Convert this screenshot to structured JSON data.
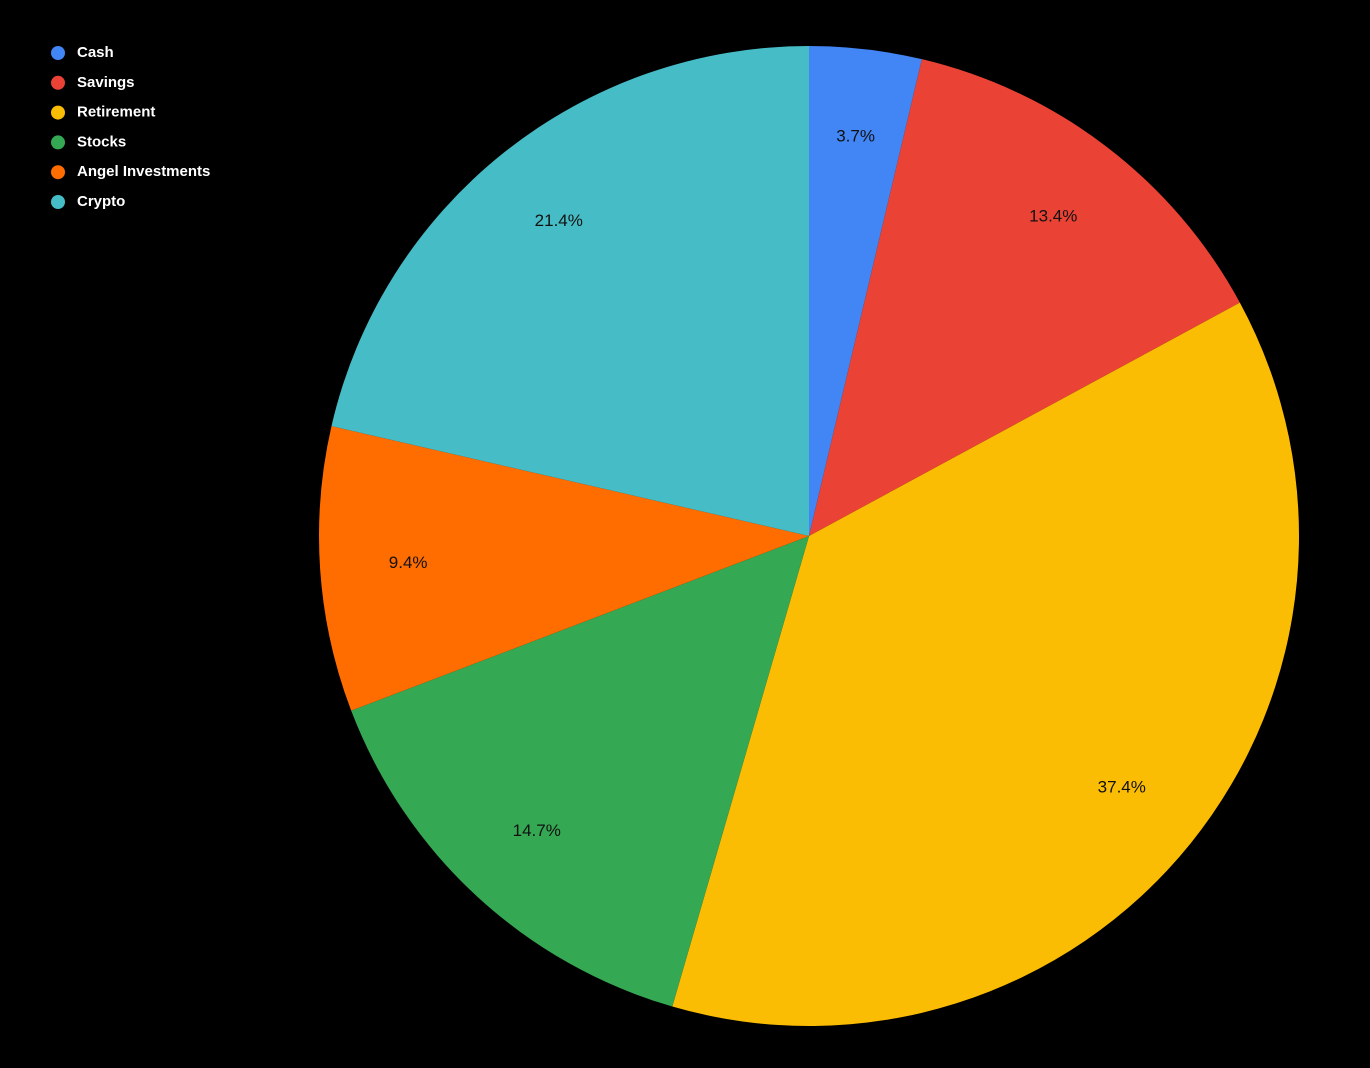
{
  "chart_data": {
    "type": "pie",
    "categories": [
      "Cash",
      "Savings",
      "Retirement",
      "Stocks",
      "Angel Investments",
      "Crypto"
    ],
    "values": [
      3.7,
      13.4,
      37.4,
      14.7,
      9.4,
      21.4
    ],
    "value_labels": [
      "3.7%",
      "13.4%",
      "37.4%",
      "14.7%",
      "9.4%",
      "21.4%"
    ],
    "colors": [
      "#4285f4",
      "#ea4335",
      "#fbbc04",
      "#34a853",
      "#ff6d01",
      "#46bdc6"
    ],
    "legend": "top-left"
  }
}
